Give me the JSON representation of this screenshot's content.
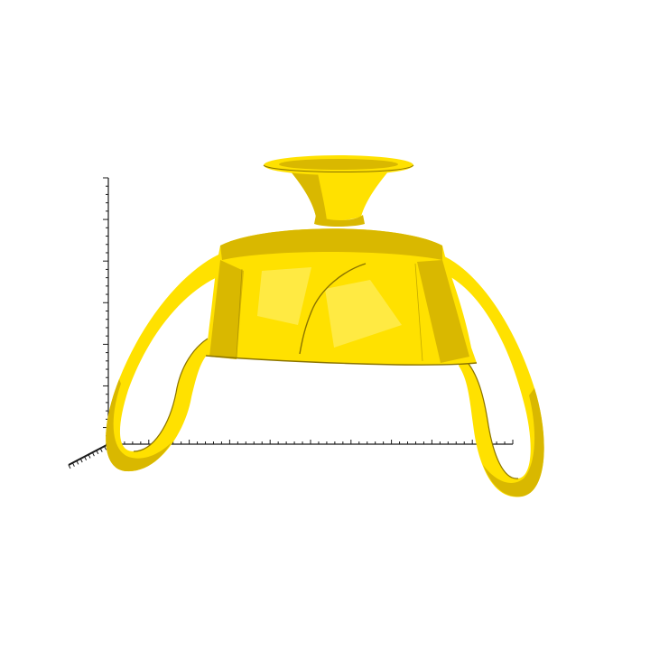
{
  "viewer": {
    "background_color": "#ffffff",
    "axes_color": "#1a1a1a"
  },
  "model": {
    "name_icon": "amphora-mesh",
    "fill_color": "#ffe100",
    "shade_color": "#d9b800",
    "dark_color": "#8a7300",
    "highlight_color": "#fff27a"
  }
}
